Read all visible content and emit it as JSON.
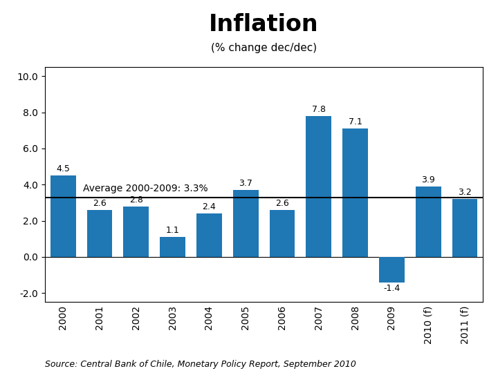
{
  "chart_data": {
    "type": "bar",
    "title": "Inflation",
    "subtitle": "(% change dec/dec)",
    "categories": [
      "2000",
      "2001",
      "2002",
      "2003",
      "2004",
      "2005",
      "2006",
      "2007",
      "2008",
      "2009",
      "2010 (f)",
      "2011 (f)"
    ],
    "values": [
      4.5,
      2.6,
      2.8,
      1.1,
      2.4,
      3.7,
      2.6,
      7.8,
      7.1,
      -1.4,
      3.9,
      3.2
    ],
    "data_labels": true,
    "average_line": {
      "value": 3.3,
      "label": "Average 2000-2009: 3.3%"
    },
    "ylim": [
      -2.5,
      10.5
    ],
    "yticks": [
      {
        "value": -2.0,
        "label": "-2.0"
      },
      {
        "value": 0.0,
        "label": "0.0"
      },
      {
        "value": 2.0,
        "label": "2.0"
      },
      {
        "value": 4.0,
        "label": "4.0"
      },
      {
        "value": 6.0,
        "label": "6.0"
      },
      {
        "value": 8.0,
        "label": "8.0"
      },
      {
        "value": 10.0,
        "label": "10.0"
      }
    ],
    "source": "Source: Central Bank of Chile, Monetary Policy Report, September 2010",
    "grid": false
  }
}
